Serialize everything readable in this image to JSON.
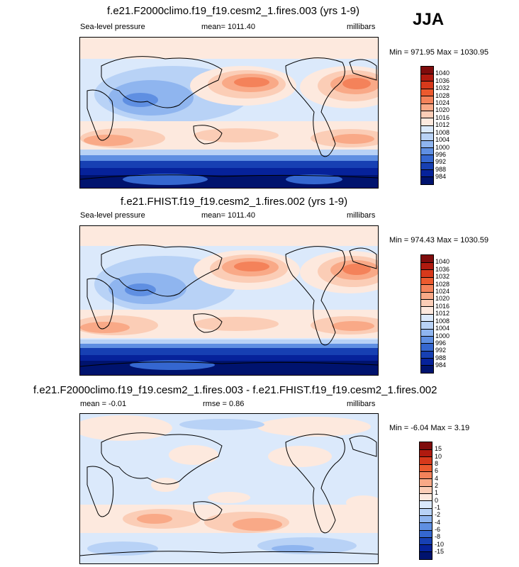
{
  "season": "JJA",
  "panels": [
    {
      "title": "f.e21.F2000climo.f19_f19.cesm2_1.fires.003 (yrs 1-9)",
      "left_label": "Sea-level pressure",
      "center_label": "mean= 1011.40",
      "right_label": "millibars",
      "minmax": "Min = 971.95 Max = 1030.95",
      "colorbar_labels": [
        "1040",
        "1036",
        "1032",
        "1028",
        "1024",
        "1020",
        "1016",
        "1012",
        "1008",
        "1004",
        "1000",
        "996",
        "992",
        "988",
        "984"
      ]
    },
    {
      "title": "f.e21.FHIST.f19_f19.cesm2_1.fires.002 (yrs 1-9)",
      "left_label": "Sea-level pressure",
      "center_label": "mean= 1011.40",
      "right_label": "millibars",
      "minmax": "Min = 974.43 Max = 1030.59",
      "colorbar_labels": [
        "1040",
        "1036",
        "1032",
        "1028",
        "1024",
        "1020",
        "1016",
        "1012",
        "1008",
        "1004",
        "1000",
        "996",
        "992",
        "988",
        "984"
      ]
    },
    {
      "title": "f.e21.F2000climo.f19_f19.cesm2_1.fires.003 - f.e21.FHIST.f19_f19.cesm2_1.fires.002",
      "left_label": "mean =  -0.01",
      "center_label": "rmse =   0.86",
      "right_label": "millibars",
      "minmax": "Min =  -6.04 Max =   3.19",
      "colorbar_labels": [
        "15",
        "10",
        "8",
        "6",
        "4",
        "2",
        "1",
        "0",
        "-1",
        "-2",
        "-4",
        "-6",
        "-8",
        "-10",
        "-15"
      ]
    }
  ],
  "colors": {
    "levels": [
      "#7f0c0c",
      "#b01a0f",
      "#d7391b",
      "#ec5a2e",
      "#f4825a",
      "#f9a987",
      "#fbcdb6",
      "#fde9de",
      "#dbe9fb",
      "#b8d2f6",
      "#8fb5ef",
      "#5f8fe2",
      "#3567d0",
      "#1740b3",
      "#06229a",
      "#00136e"
    ]
  }
}
